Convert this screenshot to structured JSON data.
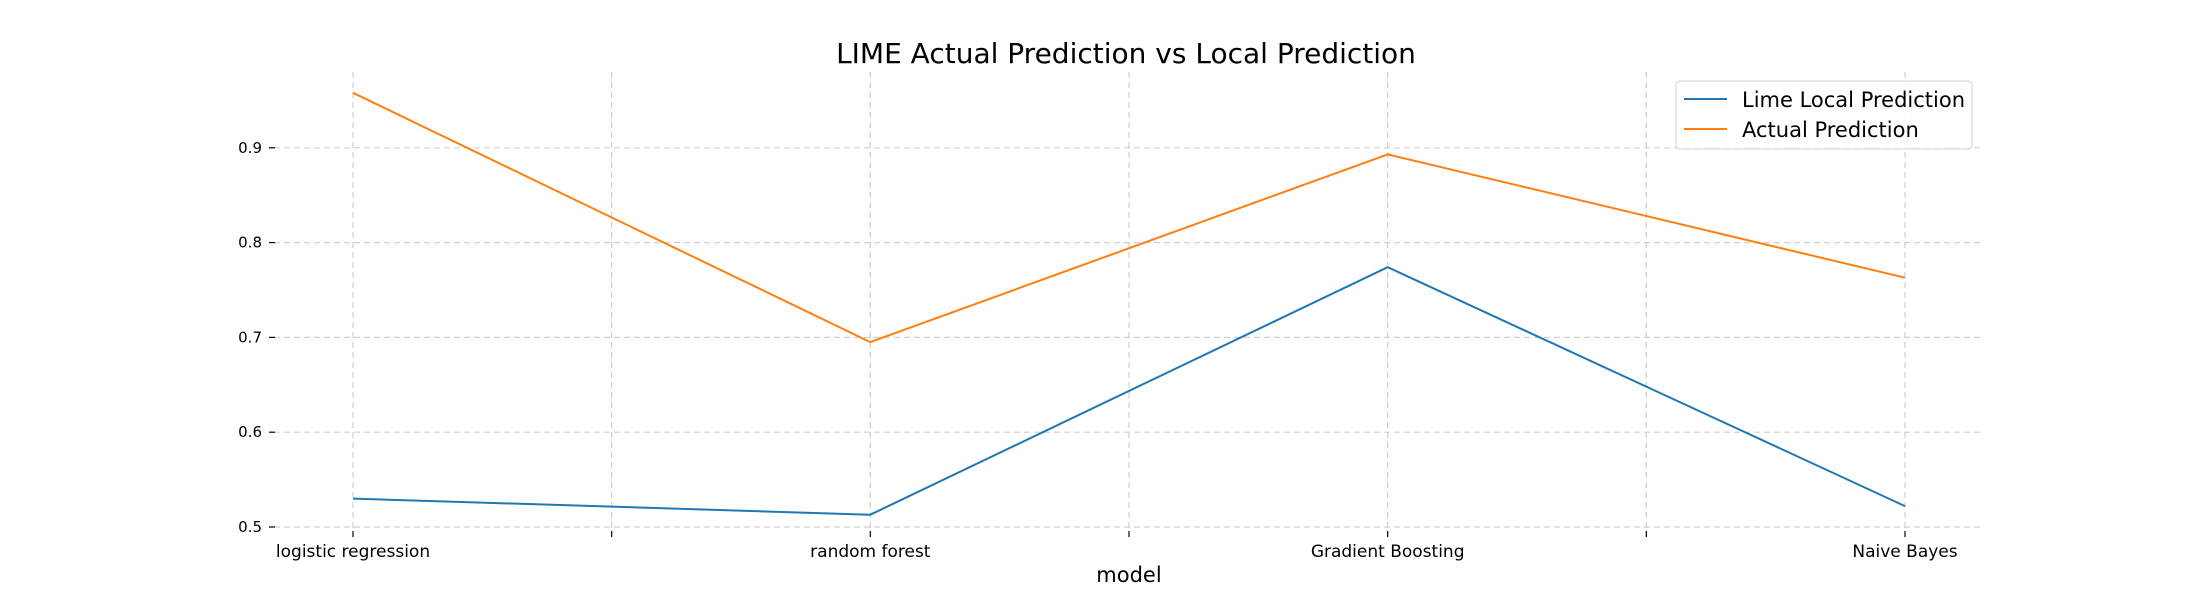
{
  "chart_data": {
    "type": "line",
    "title": "LIME Actual Prediction vs Local Prediction",
    "xlabel": "model",
    "ylabel": "",
    "categories": [
      "logistic regression",
      "random forest",
      "Gradient Boosting",
      "Naive Bayes"
    ],
    "ylim": [
      0.5,
      0.98
    ],
    "yticks": [
      0.5,
      0.6,
      0.7,
      0.8,
      0.9
    ],
    "ytick_labels": [
      "0.5",
      "0.6",
      "0.7",
      "0.8",
      "0.9"
    ],
    "grid": true,
    "legend_position": "top-right",
    "series": [
      {
        "name": "Lime Local Prediction",
        "color": "#1f77b4",
        "values": [
          0.53,
          0.513,
          0.774,
          0.522
        ]
      },
      {
        "name": "Actual Prediction",
        "color": "#ff7f0e",
        "values": [
          0.958,
          0.695,
          0.893,
          0.763
        ]
      }
    ]
  }
}
